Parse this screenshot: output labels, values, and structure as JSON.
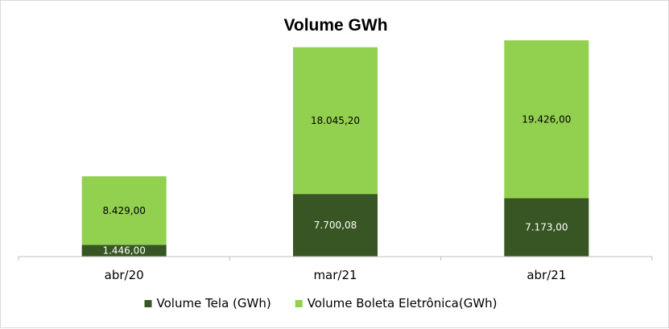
{
  "chart_data": {
    "type": "bar",
    "stacked": true,
    "title": "Volume GWh",
    "categories": [
      "abr/20",
      "mar/21",
      "abr/21"
    ],
    "series": [
      {
        "name": "Volume Tela (GWh)",
        "values": [
          1446.0,
          7700.08,
          7173.0
        ],
        "labels": [
          "1.446,00",
          "7.700,08",
          "7.173,00"
        ],
        "color": "#375623",
        "label_color": "#ffffff"
      },
      {
        "name": "Volume Boleta Eletrônica(GWh)",
        "values": [
          8429.0,
          18045.2,
          19426.0
        ],
        "labels": [
          "8.429,00",
          "18.045,20",
          "19.426,00"
        ],
        "color": "#92d050",
        "label_color": "#000000"
      }
    ],
    "ylim": [
      0,
      27500
    ],
    "grid": false,
    "legend_position": "bottom",
    "xlabel": "",
    "ylabel": ""
  }
}
